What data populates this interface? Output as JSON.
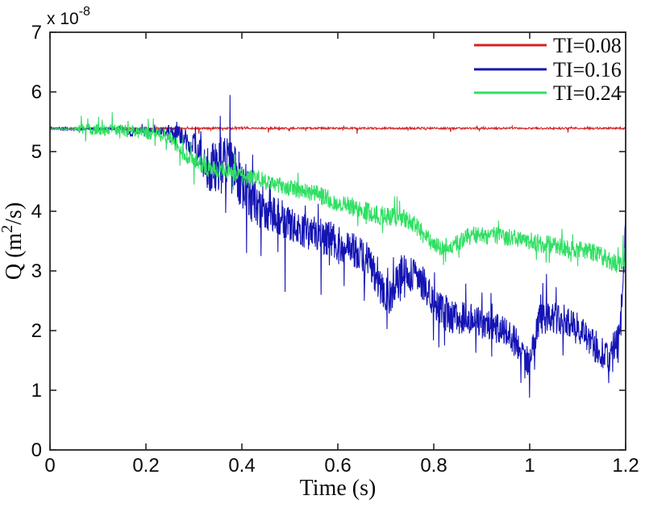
{
  "figure": {
    "background": "#ffffff",
    "axis_color": "#262626",
    "text_color": "#0a0a0a",
    "xlabel": "Time (s)",
    "ylabel_parts": {
      "pre": "Q (m",
      "sup": "2",
      "post": "/s)"
    },
    "exponent": {
      "base": "x 10",
      "power": "-8"
    }
  },
  "legend": {
    "position": "top-right",
    "entries": [
      {
        "label": "TI=0.08",
        "color": "#d42323"
      },
      {
        "label": "TI=0.16",
        "color": "#1414b4"
      },
      {
        "label": "TI=0.24",
        "color": "#30df63"
      }
    ]
  },
  "chart_data": {
    "type": "line",
    "title": "",
    "xlabel": "Time (s)",
    "ylabel": "Q (m2/s), scale x10^-8",
    "xlim": [
      0,
      1.2
    ],
    "ylim": [
      0,
      7
    ],
    "grid": false,
    "legend_position": "top-right",
    "x_tick_values": [
      0,
      0.2,
      0.4,
      0.6,
      0.8,
      1,
      1.2
    ],
    "x_tick_labels": [
      "0",
      "0.2",
      "0.4",
      "0.6",
      "0.8",
      "1",
      "1.2"
    ],
    "y_tick_values": [
      0,
      1,
      2,
      3,
      4,
      5,
      6,
      7
    ],
    "y_tick_labels": [
      "0",
      "1",
      "2",
      "3",
      "4",
      "5",
      "6",
      "7"
    ],
    "series": [
      {
        "name": "TI=0.08",
        "color": "#d42323",
        "width": 1.1,
        "points": 1300,
        "seed": 11,
        "mean": [
          [
            0,
            5.39
          ],
          [
            1.2,
            5.39
          ]
        ],
        "noise": [
          [
            0,
            0.016
          ],
          [
            1.2,
            0.016
          ]
        ],
        "spikes": [
          [
            0.31,
            5.3
          ],
          [
            0.455,
            5.32
          ],
          [
            0.64,
            5.3
          ],
          [
            0.835,
            5.33
          ],
          [
            1.08,
            5.32
          ]
        ]
      },
      {
        "name": "TI=0.16",
        "color": "#1414b4",
        "width": 1.1,
        "points": 1600,
        "seed": 23,
        "mean": [
          [
            0,
            5.38
          ],
          [
            0.15,
            5.38
          ],
          [
            0.17,
            5.3
          ],
          [
            0.19,
            5.37
          ],
          [
            0.25,
            5.33
          ],
          [
            0.28,
            5.25
          ],
          [
            0.3,
            5.05
          ],
          [
            0.33,
            4.7
          ],
          [
            0.36,
            4.85
          ],
          [
            0.375,
            4.75
          ],
          [
            0.4,
            4.5
          ],
          [
            0.43,
            4.1
          ],
          [
            0.46,
            4.0
          ],
          [
            0.5,
            3.8
          ],
          [
            0.54,
            3.65
          ],
          [
            0.58,
            3.55
          ],
          [
            0.62,
            3.4
          ],
          [
            0.66,
            3.25
          ],
          [
            0.69,
            2.7
          ],
          [
            0.71,
            2.55
          ],
          [
            0.73,
            3.0
          ],
          [
            0.77,
            2.9
          ],
          [
            0.8,
            2.45
          ],
          [
            0.83,
            2.25
          ],
          [
            0.87,
            2.2
          ],
          [
            0.91,
            2.1
          ],
          [
            0.95,
            2.0
          ],
          [
            0.98,
            1.7
          ],
          [
            1.0,
            1.45
          ],
          [
            1.02,
            2.2
          ],
          [
            1.05,
            2.2
          ],
          [
            1.08,
            2.15
          ],
          [
            1.11,
            1.95
          ],
          [
            1.14,
            1.7
          ],
          [
            1.165,
            1.55
          ],
          [
            1.185,
            1.9
          ],
          [
            1.195,
            2.8
          ],
          [
            1.2,
            3.9
          ]
        ],
        "noise": [
          [
            0,
            0.018
          ],
          [
            0.14,
            0.018
          ],
          [
            0.16,
            0.05
          ],
          [
            0.22,
            0.06
          ],
          [
            0.27,
            0.15
          ],
          [
            0.31,
            0.3
          ],
          [
            0.36,
            0.5
          ],
          [
            0.42,
            0.42
          ],
          [
            0.5,
            0.3
          ],
          [
            0.6,
            0.3
          ],
          [
            0.7,
            0.28
          ],
          [
            0.8,
            0.3
          ],
          [
            0.9,
            0.26
          ],
          [
            1.0,
            0.26
          ],
          [
            1.1,
            0.28
          ],
          [
            1.18,
            0.25
          ],
          [
            1.2,
            0.18
          ]
        ],
        "spikes": [
          [
            0.355,
            5.6
          ],
          [
            0.375,
            5.95
          ],
          [
            0.41,
            3.3
          ],
          [
            0.44,
            3.25
          ],
          [
            0.49,
            2.65
          ],
          [
            0.565,
            2.6
          ],
          [
            0.655,
            2.5
          ],
          [
            0.7,
            2.35
          ],
          [
            0.99,
            1.2
          ],
          [
            1.035,
            2.95
          ],
          [
            1.165,
            1.12
          ],
          [
            1.2,
            3.95
          ]
        ]
      },
      {
        "name": "TI=0.24",
        "color": "#30df63",
        "width": 1.1,
        "points": 1600,
        "seed": 37,
        "mean": [
          [
            0,
            5.38
          ],
          [
            0.05,
            5.38
          ],
          [
            0.1,
            5.37
          ],
          [
            0.15,
            5.35
          ],
          [
            0.2,
            5.32
          ],
          [
            0.24,
            5.28
          ],
          [
            0.26,
            5.15
          ],
          [
            0.28,
            4.95
          ],
          [
            0.3,
            4.85
          ],
          [
            0.33,
            4.72
          ],
          [
            0.37,
            4.68
          ],
          [
            0.4,
            4.6
          ],
          [
            0.45,
            4.5
          ],
          [
            0.5,
            4.4
          ],
          [
            0.55,
            4.3
          ],
          [
            0.6,
            4.15
          ],
          [
            0.64,
            4.05
          ],
          [
            0.68,
            3.95
          ],
          [
            0.72,
            3.9
          ],
          [
            0.75,
            3.85
          ],
          [
            0.78,
            3.6
          ],
          [
            0.81,
            3.4
          ],
          [
            0.84,
            3.45
          ],
          [
            0.88,
            3.6
          ],
          [
            0.92,
            3.6
          ],
          [
            0.96,
            3.55
          ],
          [
            1.0,
            3.5
          ],
          [
            1.05,
            3.42
          ],
          [
            1.1,
            3.35
          ],
          [
            1.14,
            3.3
          ],
          [
            1.17,
            3.15
          ],
          [
            1.19,
            3.1
          ],
          [
            1.2,
            3.3
          ]
        ],
        "noise": [
          [
            0,
            0.008
          ],
          [
            0.05,
            0.008
          ],
          [
            0.065,
            0.09
          ],
          [
            0.15,
            0.1
          ],
          [
            0.25,
            0.12
          ],
          [
            0.35,
            0.14
          ],
          [
            0.5,
            0.15
          ],
          [
            0.7,
            0.16
          ],
          [
            0.9,
            0.15
          ],
          [
            1.1,
            0.16
          ],
          [
            1.2,
            0.15
          ]
        ],
        "spikes": [
          [
            0.065,
            5.6
          ],
          [
            0.13,
            5.66
          ],
          [
            0.205,
            5.55
          ],
          [
            0.3,
            4.45
          ],
          [
            0.82,
            3.1
          ],
          [
            1.195,
            3.6
          ]
        ]
      }
    ]
  }
}
